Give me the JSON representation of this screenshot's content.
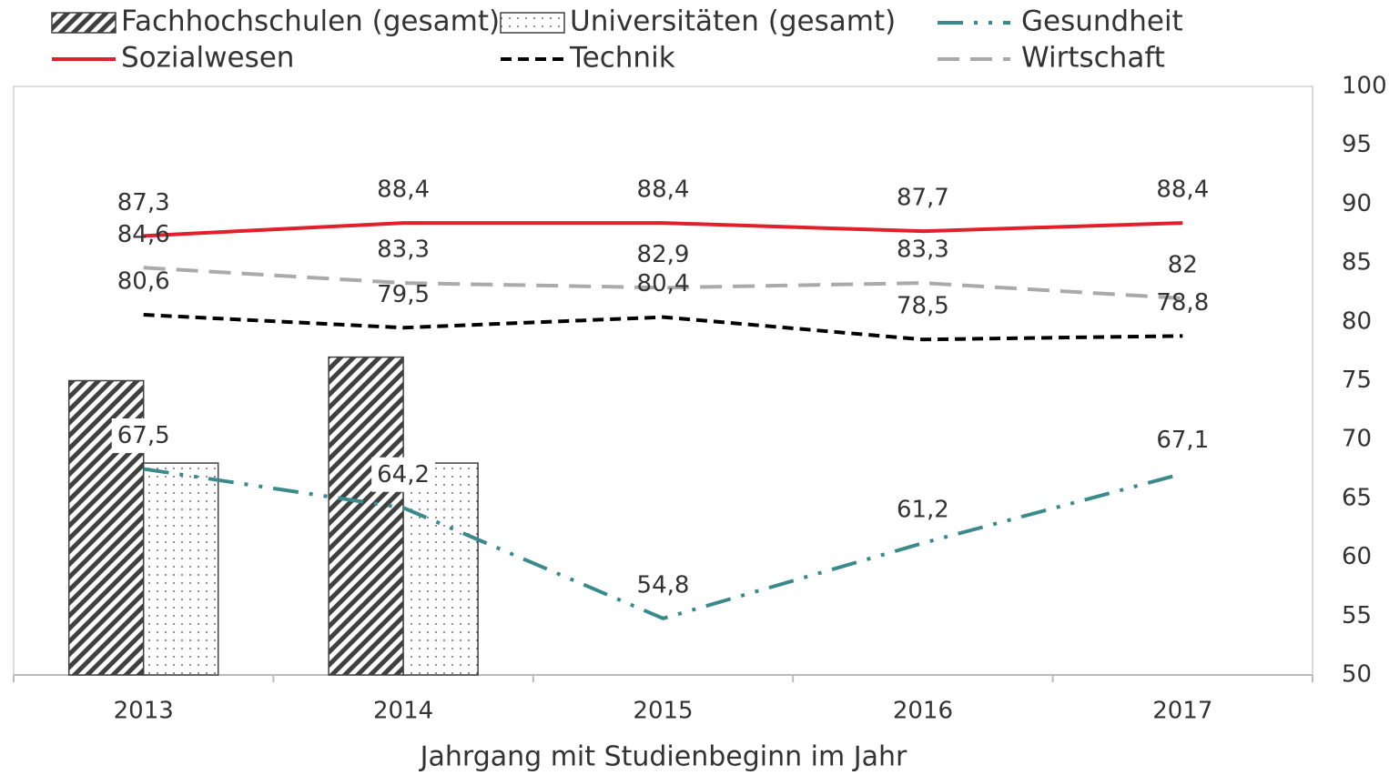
{
  "chart_data": {
    "type": "combo",
    "x_label": "Jahrgang mit Studienbeginn im Jahr",
    "categories": [
      "2013",
      "2014",
      "2015",
      "2016",
      "2017"
    ],
    "ylim": [
      50,
      100
    ],
    "yticks": [
      50,
      55,
      60,
      65,
      70,
      75,
      80,
      85,
      90,
      95,
      100
    ],
    "y_axis_side": "right",
    "series": [
      {
        "name": "Fachhochschulen (gesamt)",
        "type": "bar",
        "pattern": "hatch",
        "color": "#404040",
        "values": [
          75,
          77,
          null,
          null,
          null
        ]
      },
      {
        "name": "Universitäten (gesamt)",
        "type": "bar",
        "pattern": "dots",
        "color": "#404040",
        "values": [
          68,
          68,
          null,
          null,
          null
        ]
      },
      {
        "name": "Gesundheit",
        "type": "line",
        "color": "#3a8a8c",
        "dash": "28 12 4 12 4 12",
        "values": [
          67.5,
          64.2,
          54.8,
          61.2,
          67.1
        ],
        "value_labels": [
          "67,5",
          "64,2",
          "54,8",
          "61,2",
          "67,1"
        ]
      },
      {
        "name": "Sozialwesen",
        "type": "line",
        "color": "#e0202a",
        "dash": "none",
        "values": [
          87.3,
          88.4,
          88.4,
          87.7,
          88.4
        ],
        "value_labels": [
          "87,3",
          "88,4",
          "88,4",
          "87,7",
          "88,4"
        ]
      },
      {
        "name": "Technik",
        "type": "line",
        "color": "#000000",
        "dash": "12 7",
        "values": [
          80.6,
          79.5,
          80.4,
          78.5,
          78.8
        ],
        "value_labels": [
          "80,6",
          "79,5",
          "80,4",
          "78,5",
          "78,8"
        ]
      },
      {
        "name": "Wirtschaft",
        "type": "line",
        "color": "#aaaaaa",
        "dash": "24 12",
        "values": [
          84.6,
          83.3,
          82.9,
          83.3,
          82
        ],
        "value_labels": [
          "84,6",
          "83,3",
          "82,9",
          "83,3",
          "82"
        ]
      }
    ]
  }
}
